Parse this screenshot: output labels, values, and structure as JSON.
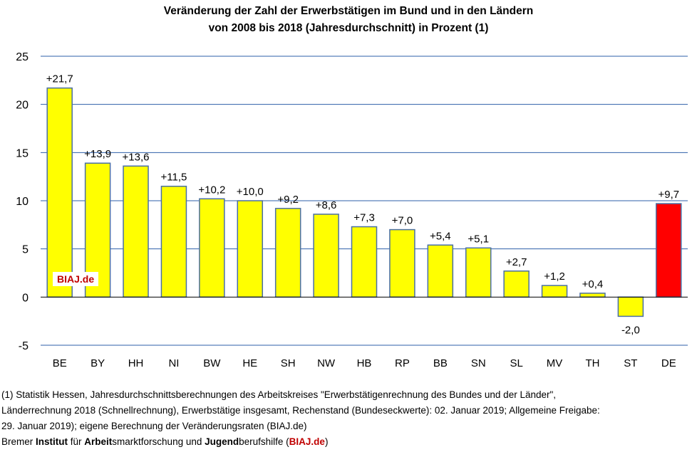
{
  "title": {
    "line1": "Veränderung der Zahl der Erwerbstätigen im Bund und in den Ländern",
    "line2": "von 2008 bis 2018 (Jahresdurchschnitt) in Prozent (1)"
  },
  "watermark": "BIAJ.de",
  "chart_data": {
    "type": "bar",
    "categories": [
      "BE",
      "BY",
      "HH",
      "NI",
      "BW",
      "HE",
      "SH",
      "NW",
      "HB",
      "RP",
      "BB",
      "SN",
      "SL",
      "MV",
      "TH",
      "ST",
      "DE"
    ],
    "values": [
      21.7,
      13.9,
      13.6,
      11.5,
      10.2,
      10.0,
      9.2,
      8.6,
      7.3,
      7.0,
      5.4,
      5.1,
      2.7,
      1.2,
      0.4,
      -2.0,
      9.7
    ],
    "value_labels": [
      "+21,7",
      "+13,9",
      "+13,6",
      "+11,5",
      "+10,2",
      "+10,0",
      "+9,2",
      "+8,6",
      "+7,3",
      "+7,0",
      "+5,4",
      "+5,1",
      "+2,7",
      "+1,2",
      "+0,4",
      "-2,0",
      "+9,7"
    ],
    "ylim": [
      -5,
      25
    ],
    "yticks": [
      -5,
      0,
      5,
      10,
      15,
      20,
      25
    ],
    "grid": true,
    "colors": {
      "bar": "#ffff00",
      "highlight": "#ff0000",
      "border": "#4a6fa5",
      "grid": "#2e5fa8"
    },
    "highlight_category": "DE"
  },
  "footnote": {
    "line1": "(1) Statistik Hessen, Jahresdurchschnittsberechnungen des Arbeitskreises \"Erwerbstätigenrechnung des Bundes und der Länder\",",
    "line2": "Länderrechnung 2018 (Schnellrechnung), Erwerbstätige insgesamt, Rechenstand (Bundeseckwerte): 02. Januar 2019; Allgemeine Freigabe:",
    "line3": "29. Januar 2019); eigene Berechnung der Veränderungsraten (BIAJ.de)"
  },
  "credit": {
    "p1": "Bremer ",
    "b1": "Institut",
    "p2": " für ",
    "b2": "Arbeit",
    "p3": "smarktforschung und ",
    "b3": "Jugend",
    "p4": "berufshilfe (",
    "brand": "BIAJ.de",
    "p5": ")"
  }
}
